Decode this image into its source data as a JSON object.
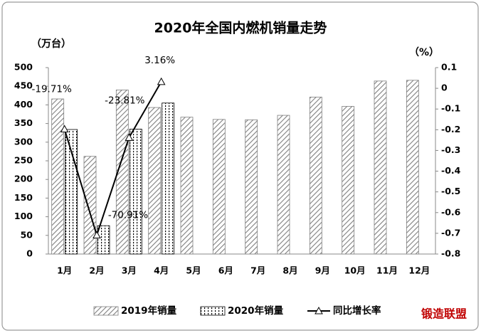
{
  "chart_data": {
    "type": "bar",
    "title": "2020年全国内燃机销量走势",
    "y_label": "（万台）",
    "y2_label": "（%）",
    "categories": [
      "1月",
      "2月",
      "3月",
      "4月",
      "5月",
      "6月",
      "7月",
      "8月",
      "9月",
      "10月",
      "11月",
      "12月"
    ],
    "series": [
      {
        "name": "2019年销量",
        "color": "#7f7f7f",
        "pattern": "diagonal",
        "values": [
          416,
          262,
          440,
          393,
          367,
          361,
          360,
          372,
          421,
          396,
          464,
          466
        ]
      },
      {
        "name": "2020年销量",
        "color": "#000000",
        "pattern": "dotted-vertical",
        "values": [
          334,
          76,
          335,
          405,
          null,
          null,
          null,
          null,
          null,
          null,
          null,
          null
        ]
      },
      {
        "name": "同比增长率",
        "type": "line",
        "axis": "y2",
        "color": "#000000",
        "marker": "triangle",
        "values": [
          -0.1971,
          -0.7091,
          -0.2381,
          0.0316,
          null,
          null,
          null,
          null,
          null,
          null,
          null,
          null
        ],
        "value_labels": [
          "-19.71%",
          "-70.91%",
          "-23.81%",
          "3.16%",
          null,
          null,
          null,
          null,
          null,
          null,
          null,
          null
        ]
      }
    ],
    "ylim": [
      0,
      500
    ],
    "yticks": [
      0,
      50,
      100,
      150,
      200,
      250,
      300,
      350,
      400,
      450,
      500
    ],
    "y2lim": [
      -0.8,
      0.1
    ],
    "y2ticks": [
      -0.8,
      -0.7,
      -0.6,
      -0.5,
      -0.4,
      -0.3,
      -0.2,
      -0.1,
      0,
      0.1
    ],
    "grid": false,
    "legend": "bottom",
    "watermark": "锻造联盟"
  }
}
